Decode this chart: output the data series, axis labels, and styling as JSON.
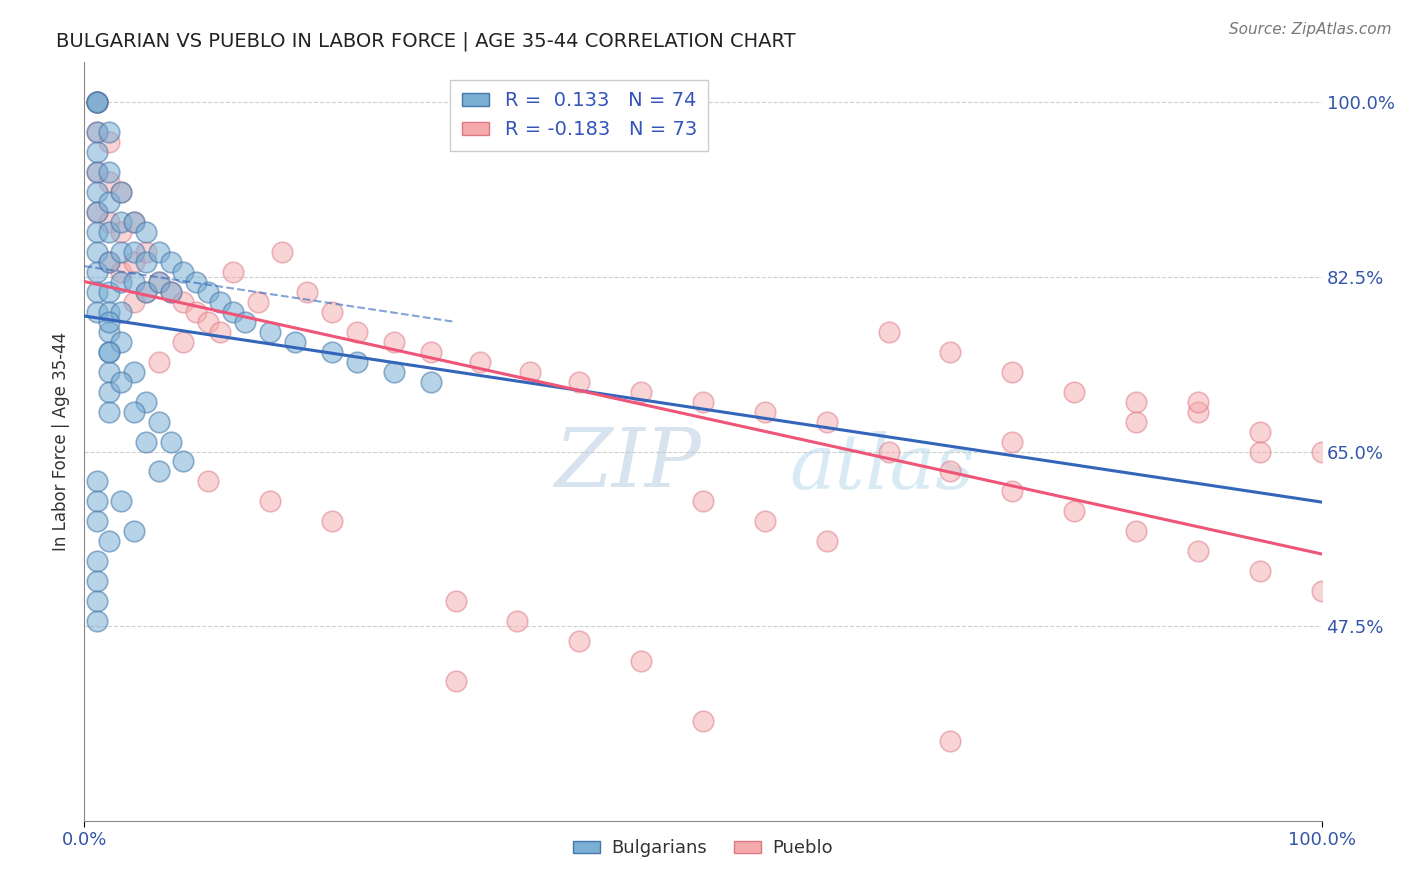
{
  "title": "BULGARIAN VS PUEBLO IN LABOR FORCE | AGE 35-44 CORRELATION CHART",
  "source": "Source: ZipAtlas.com",
  "ylabel": "In Labor Force | Age 35-44",
  "ytick_labels": [
    "47.5%",
    "65.0%",
    "82.5%",
    "100.0%"
  ],
  "ytick_values": [
    0.475,
    0.65,
    0.825,
    1.0
  ],
  "xlim": [
    0.0,
    1.0
  ],
  "ylim": [
    0.28,
    1.04
  ],
  "legend_blue_r": "0.133",
  "legend_blue_n": "74",
  "legend_pink_r": "-0.183",
  "legend_pink_n": "73",
  "blue_face_color": "#7BAFD4",
  "blue_edge_color": "#4477AA",
  "pink_face_color": "#F5AAAA",
  "pink_edge_color": "#DD7788",
  "blue_line_color": "#3366BB",
  "pink_line_color": "#EE5577",
  "watermark_zip": "ZIP",
  "watermark_atlas": "atlas",
  "blue_x": [
    0.01,
    0.01,
    0.01,
    0.01,
    0.01,
    0.01,
    0.01,
    0.01,
    0.01,
    0.01,
    0.01,
    0.01,
    0.01,
    0.02,
    0.02,
    0.02,
    0.02,
    0.02,
    0.02,
    0.02,
    0.02,
    0.02,
    0.02,
    0.03,
    0.03,
    0.03,
    0.03,
    0.03,
    0.04,
    0.04,
    0.04,
    0.05,
    0.05,
    0.05,
    0.06,
    0.06,
    0.07,
    0.07,
    0.08,
    0.09,
    0.1,
    0.11,
    0.12,
    0.13,
    0.15,
    0.17,
    0.2,
    0.22,
    0.25,
    0.28,
    0.02,
    0.02,
    0.03,
    0.04,
    0.05,
    0.06,
    0.07,
    0.08,
    0.01,
    0.01,
    0.01,
    0.02,
    0.03,
    0.04,
    0.01,
    0.01,
    0.01,
    0.01,
    0.02,
    0.02,
    0.03,
    0.04,
    0.05,
    0.06
  ],
  "blue_y": [
    1.0,
    1.0,
    1.0,
    0.97,
    0.95,
    0.93,
    0.91,
    0.89,
    0.87,
    0.85,
    0.83,
    0.81,
    0.79,
    0.97,
    0.93,
    0.9,
    0.87,
    0.84,
    0.81,
    0.79,
    0.77,
    0.75,
    0.73,
    0.91,
    0.88,
    0.85,
    0.82,
    0.79,
    0.88,
    0.85,
    0.82,
    0.87,
    0.84,
    0.81,
    0.85,
    0.82,
    0.84,
    0.81,
    0.83,
    0.82,
    0.81,
    0.8,
    0.79,
    0.78,
    0.77,
    0.76,
    0.75,
    0.74,
    0.73,
    0.72,
    0.71,
    0.69,
    0.76,
    0.73,
    0.7,
    0.68,
    0.66,
    0.64,
    0.62,
    0.6,
    0.58,
    0.56,
    0.6,
    0.57,
    0.54,
    0.52,
    0.5,
    0.48,
    0.78,
    0.75,
    0.72,
    0.69,
    0.66,
    0.63
  ],
  "pink_x": [
    0.01,
    0.01,
    0.01,
    0.01,
    0.01,
    0.02,
    0.02,
    0.02,
    0.02,
    0.03,
    0.03,
    0.03,
    0.04,
    0.04,
    0.05,
    0.05,
    0.06,
    0.07,
    0.08,
    0.09,
    0.1,
    0.11,
    0.12,
    0.14,
    0.16,
    0.18,
    0.2,
    0.22,
    0.25,
    0.28,
    0.32,
    0.36,
    0.4,
    0.45,
    0.5,
    0.55,
    0.6,
    0.65,
    0.7,
    0.75,
    0.8,
    0.85,
    0.9,
    0.95,
    1.0,
    0.5,
    0.55,
    0.6,
    0.65,
    0.7,
    0.75,
    0.8,
    0.85,
    0.9,
    0.95,
    1.0,
    0.3,
    0.35,
    0.4,
    0.45,
    0.1,
    0.15,
    0.2,
    0.08,
    0.06,
    0.04,
    0.3,
    0.5,
    0.7,
    0.9,
    0.95,
    0.85,
    0.75
  ],
  "pink_y": [
    1.0,
    1.0,
    0.97,
    0.93,
    0.89,
    0.96,
    0.92,
    0.88,
    0.84,
    0.91,
    0.87,
    0.83,
    0.88,
    0.84,
    0.85,
    0.81,
    0.82,
    0.81,
    0.8,
    0.79,
    0.78,
    0.77,
    0.83,
    0.8,
    0.85,
    0.81,
    0.79,
    0.77,
    0.76,
    0.75,
    0.74,
    0.73,
    0.72,
    0.71,
    0.7,
    0.69,
    0.68,
    0.77,
    0.75,
    0.73,
    0.71,
    0.7,
    0.69,
    0.67,
    0.65,
    0.6,
    0.58,
    0.56,
    0.65,
    0.63,
    0.61,
    0.59,
    0.57,
    0.55,
    0.53,
    0.51,
    0.5,
    0.48,
    0.46,
    0.44,
    0.62,
    0.6,
    0.58,
    0.76,
    0.74,
    0.8,
    0.42,
    0.38,
    0.36,
    0.7,
    0.65,
    0.68,
    0.66
  ]
}
